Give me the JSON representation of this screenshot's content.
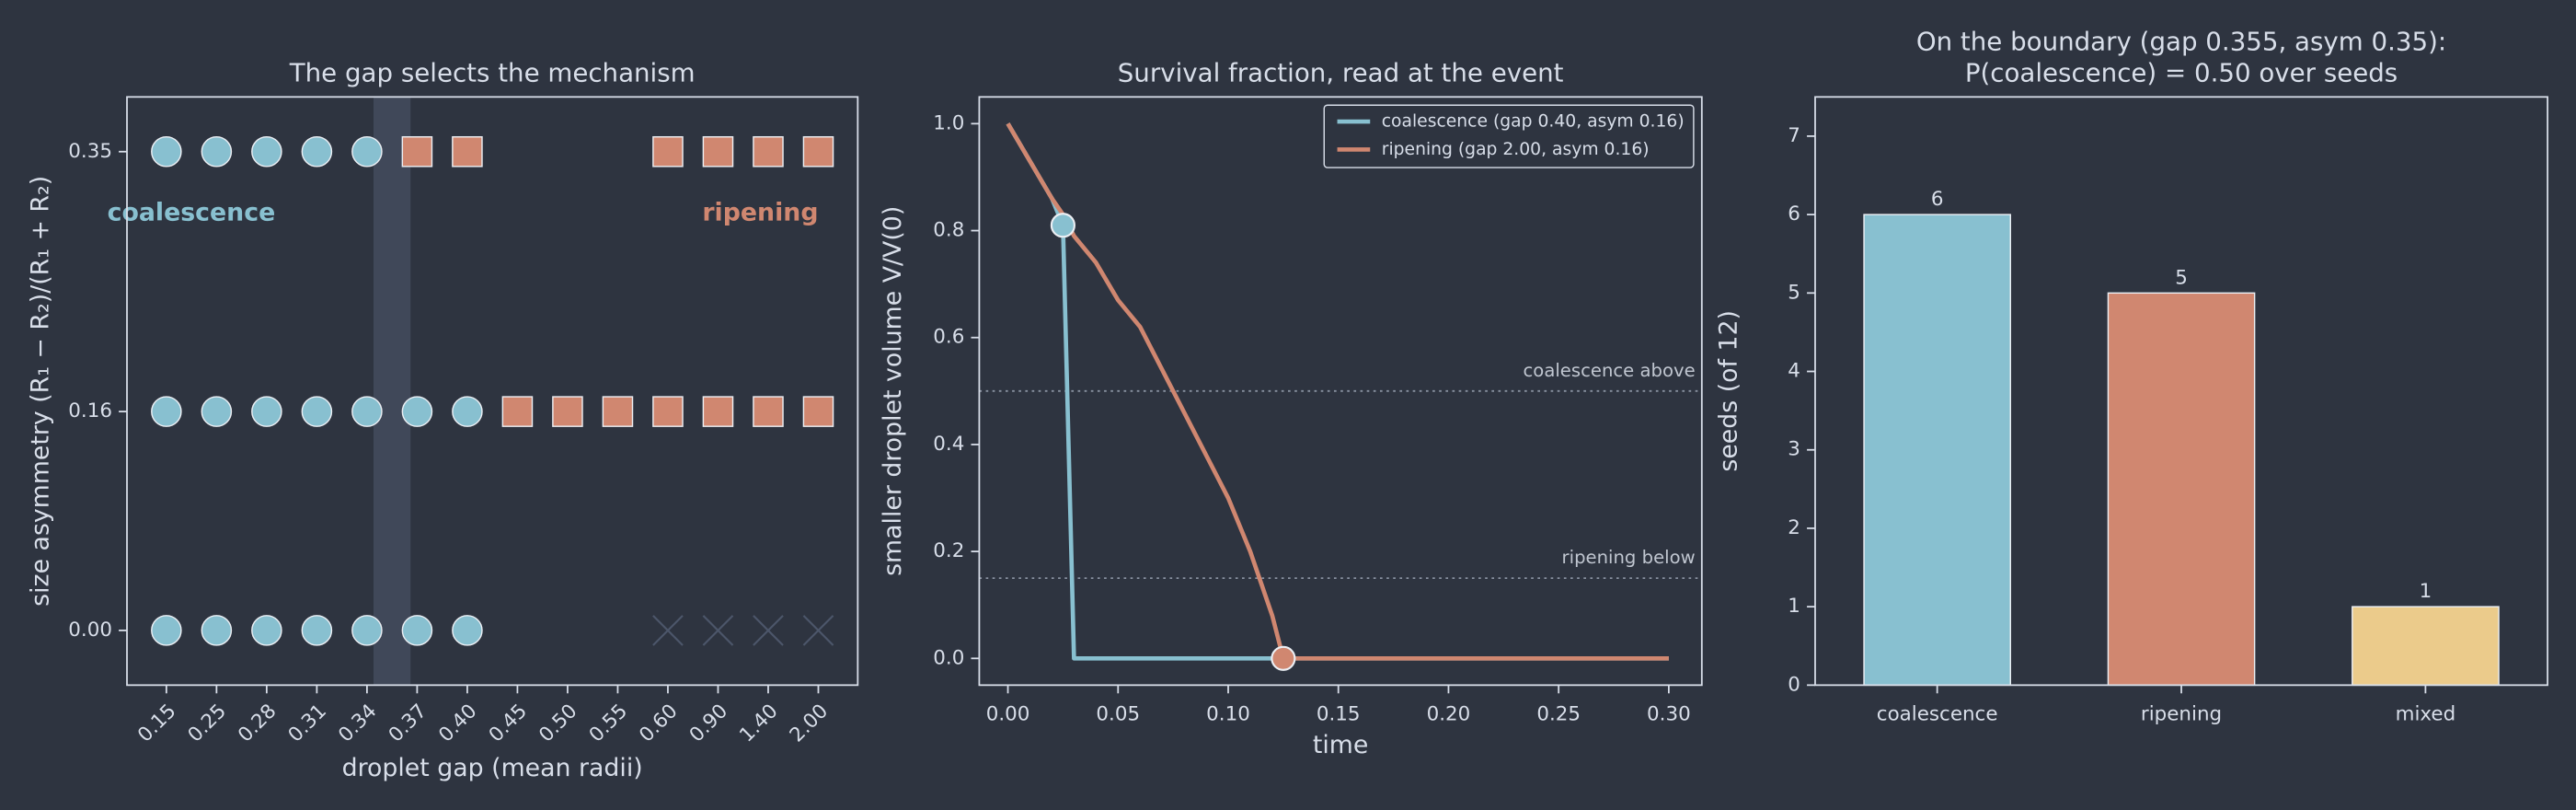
{
  "chart_data": [
    {
      "type": "scatter",
      "title": "The gap selects the mechanism",
      "xlabel": "droplet gap  (mean radii)",
      "ylabel": "size asymmetry  (R₁ − R₂)/(R₁ + R₂)",
      "categories": [
        "0.15",
        "0.25",
        "0.28",
        "0.31",
        "0.34",
        "0.37",
        "0.40",
        "0.45",
        "0.50",
        "0.55",
        "0.60",
        "0.90",
        "1.40",
        "2.00"
      ],
      "ylim": [
        -0.04,
        0.39
      ],
      "yticks": [
        {
          "value": 0,
          "label": "0.00"
        },
        {
          "value": 0.16,
          "label": "0.16"
        },
        {
          "value": 0.35,
          "label": "0.35"
        }
      ],
      "series": [
        {
          "label": "coalescence",
          "label_position": "upper left",
          "color": "#88c0d0",
          "marker": "circle",
          "x": [
            "0.15",
            "0.25",
            "0.28",
            "0.31",
            "0.34",
            "0.15",
            "0.25",
            "0.28",
            "0.31",
            "0.34",
            "0.37",
            "0.40",
            "0.15",
            "0.25",
            "0.28",
            "0.31",
            "0.34",
            "0.37",
            "0.40"
          ],
          "y": [
            0.35,
            0.35,
            0.35,
            0.35,
            0.35,
            0.16,
            0.16,
            0.16,
            0.16,
            0.16,
            0.16,
            0.16,
            0,
            0,
            0,
            0,
            0,
            0,
            0
          ]
        },
        {
          "label": "ripening",
          "label_position": "upper right",
          "color": "#d08770",
          "marker": "square",
          "x": [
            "0.37",
            "0.40",
            "0.60",
            "0.90",
            "1.40",
            "2.00",
            "0.45",
            "0.50",
            "0.55",
            "0.60",
            "0.90",
            "1.40",
            "2.00"
          ],
          "y": [
            0.35,
            0.35,
            0.35,
            0.35,
            0.35,
            0.35,
            0.16,
            0.16,
            0.16,
            0.16,
            0.16,
            0.16,
            0.16
          ]
        },
        {
          "color": "#4c566a",
          "marker": "cross",
          "x": [
            "0.60",
            "0.90",
            "1.40",
            "2.00"
          ],
          "y": [
            0,
            0,
            0,
            0
          ]
        }
      ]
    },
    {
      "type": "line",
      "title": "Survival fraction, read at the event",
      "xlabel": "time",
      "ylabel": "smaller droplet volume  V/V(0)",
      "x": [
        0,
        0.01,
        0.02,
        0.025,
        0.03,
        0.04,
        0.05,
        0.06,
        0.07,
        0.08,
        0.09,
        0.1,
        0.11,
        0.12,
        0.125,
        0.15,
        0.2,
        0.25,
        0.3
      ],
      "xlim": [
        -0.013,
        0.315
      ],
      "ylim": [
        -0.05,
        1.05
      ],
      "xticks": [
        {
          "value": 0,
          "label": "0.00"
        },
        {
          "value": 0.05,
          "label": "0.05"
        },
        {
          "value": 0.1,
          "label": "0.10"
        },
        {
          "value": 0.15,
          "label": "0.15"
        },
        {
          "value": 0.2,
          "label": "0.20"
        },
        {
          "value": 0.25,
          "label": "0.25"
        },
        {
          "value": 0.3,
          "label": "0.30"
        }
      ],
      "yticks": [
        {
          "value": 0,
          "label": "0.0"
        },
        {
          "value": 0.2,
          "label": "0.2"
        },
        {
          "value": 0.4,
          "label": "0.4"
        },
        {
          "value": 0.6,
          "label": "0.6"
        },
        {
          "value": 0.8,
          "label": "0.8"
        },
        {
          "value": 1,
          "label": "1.0"
        }
      ],
      "legend": "upper right",
      "series": [
        {
          "name": "coalescence (gap 0.40, asym 0.16)",
          "color": "#88c0d0",
          "event": 3,
          "values": [
            1,
            0.93,
            0.86,
            0.81,
            0,
            0,
            0,
            0,
            0,
            0,
            0,
            0,
            0,
            0,
            0,
            0,
            0,
            0,
            0
          ]
        },
        {
          "name": "ripening (gap 2.00, asym 0.16)",
          "color": "#d08770",
          "event": 14,
          "values": [
            1,
            0.93,
            0.86,
            0.83,
            0.79,
            0.74,
            0.67,
            0.62,
            0.54,
            0.46,
            0.38,
            0.3,
            0.2,
            0.08,
            0,
            0,
            0,
            0,
            0
          ]
        }
      ],
      "annotations": [
        {
          "text": "coalescence above",
          "y": 0.5
        },
        {
          "text": "ripening below",
          "y": 0.15
        }
      ]
    },
    {
      "type": "bar",
      "title": [
        "On the boundary (gap 0.355, asym 0.35):",
        "P(coalescence) = 0.50 over seeds"
      ],
      "ylabel": "seeds (of 12)",
      "categories": [
        "coalescence",
        "ripening",
        "mixed"
      ],
      "values": [
        6,
        5,
        1
      ],
      "colors": [
        "#88c0d0",
        "#d08770",
        "#ebcb8b"
      ],
      "ylim": [
        0,
        7.5
      ],
      "yticks": [
        0,
        1,
        2,
        3,
        4,
        5,
        6,
        7
      ]
    }
  ]
}
